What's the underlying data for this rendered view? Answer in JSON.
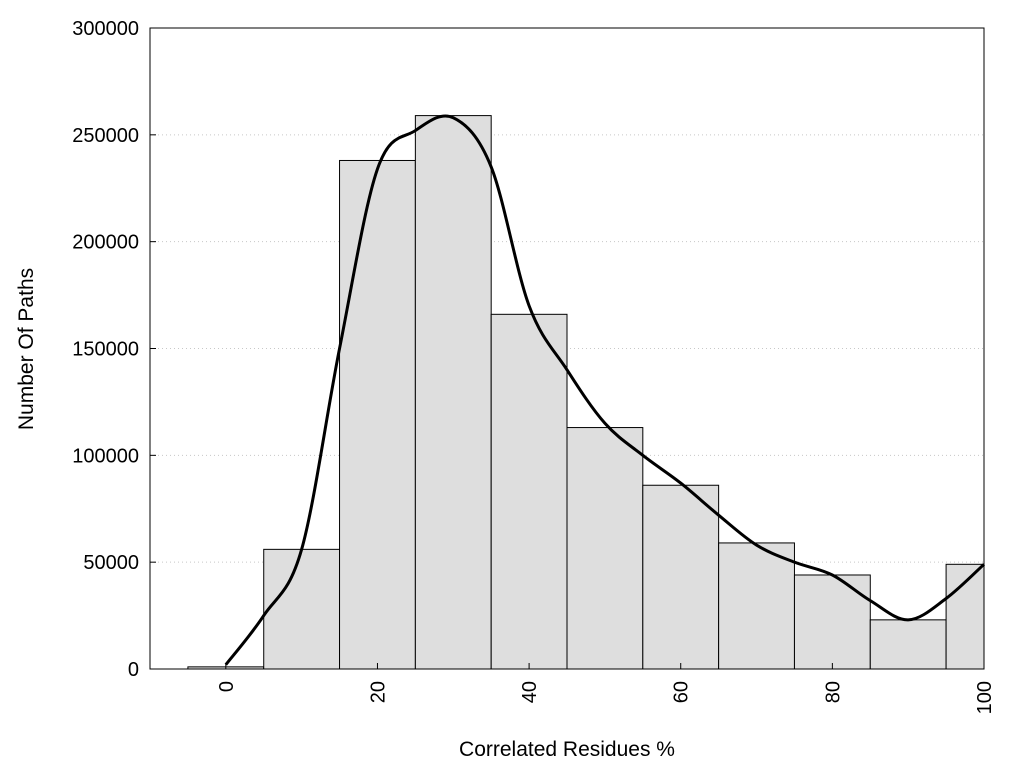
{
  "chart_data": {
    "type": "bar",
    "title": "",
    "xlabel": "Correlated Residues %",
    "ylabel": "Number Of Paths",
    "xlim": [
      -10,
      100
    ],
    "ylim": [
      0,
      300000
    ],
    "x_ticks": [
      "0",
      "20",
      "40",
      "60",
      "80",
      "100"
    ],
    "y_ticks": [
      "0",
      "50000",
      "100000",
      "150000",
      "200000",
      "250000",
      "300000"
    ],
    "grid": "horizontal dotted",
    "bin_width": 10,
    "bars": [
      {
        "x": 0,
        "value": 1000
      },
      {
        "x": 10,
        "value": 56000
      },
      {
        "x": 20,
        "value": 238000
      },
      {
        "x": 30,
        "value": 259000
      },
      {
        "x": 40,
        "value": 166000
      },
      {
        "x": 50,
        "value": 113000
      },
      {
        "x": 60,
        "value": 86000
      },
      {
        "x": 70,
        "value": 59000
      },
      {
        "x": 80,
        "value": 44000
      },
      {
        "x": 90,
        "value": 23000
      },
      {
        "x": 100,
        "value": 49000
      }
    ],
    "curve": [
      {
        "x": 0,
        "y": 2000
      },
      {
        "x": 5,
        "y": 25000
      },
      {
        "x": 10,
        "y": 56000
      },
      {
        "x": 15,
        "y": 150000
      },
      {
        "x": 20,
        "y": 234000
      },
      {
        "x": 25,
        "y": 252000
      },
      {
        "x": 30,
        "y": 258000
      },
      {
        "x": 35,
        "y": 235000
      },
      {
        "x": 40,
        "y": 170000
      },
      {
        "x": 45,
        "y": 140000
      },
      {
        "x": 50,
        "y": 115000
      },
      {
        "x": 55,
        "y": 100000
      },
      {
        "x": 60,
        "y": 87000
      },
      {
        "x": 65,
        "y": 72000
      },
      {
        "x": 70,
        "y": 58000
      },
      {
        "x": 75,
        "y": 50000
      },
      {
        "x": 80,
        "y": 44000
      },
      {
        "x": 85,
        "y": 32000
      },
      {
        "x": 90,
        "y": 23000
      },
      {
        "x": 95,
        "y": 33000
      },
      {
        "x": 100,
        "y": 49000
      }
    ],
    "colors": {
      "bar_fill": "#dedede",
      "bar_stroke": "#000000",
      "curve": "#000000",
      "grid": "#c8c8c8"
    }
  }
}
